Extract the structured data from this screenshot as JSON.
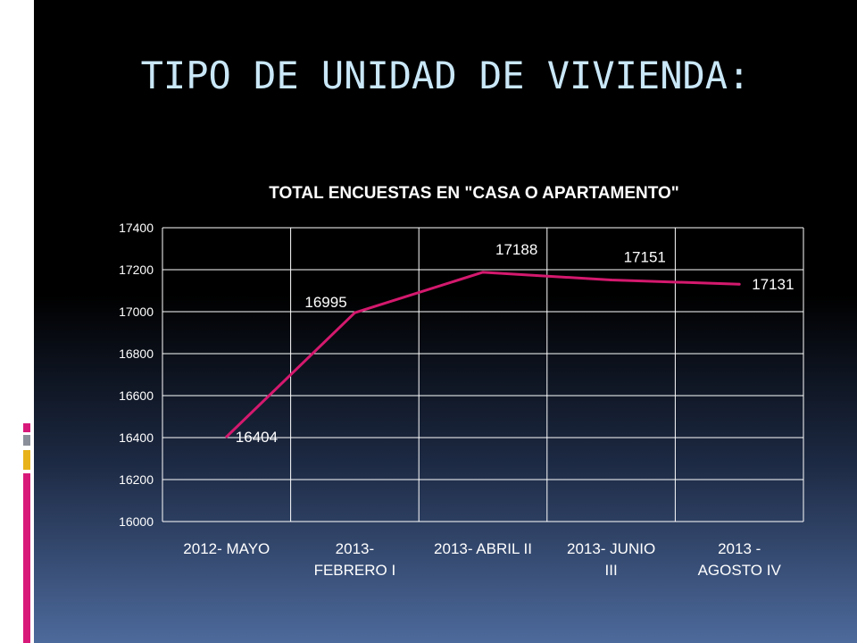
{
  "slide": {
    "title": "TIPO DE UNIDAD DE VIVIENDA:"
  },
  "colors": {
    "background": "#000000",
    "title": "#c9e7f7",
    "line": "#d4196e",
    "axis": "#ffffff",
    "accent_pink": "#d8197a",
    "accent_gray": "#8a8f99",
    "accent_yellow": "#e8b21a"
  },
  "chart_data": {
    "type": "line",
    "title": "TOTAL ENCUESTAS EN \"CASA O APARTAMENTO\"",
    "xlabel": "",
    "ylabel": "",
    "categories": [
      [
        "2012- MAYO"
      ],
      [
        "2013-",
        "FEBRERO I"
      ],
      [
        "2013- ABRIL II"
      ],
      [
        "2013- JUNIO",
        "III"
      ],
      [
        "2013 -",
        "AGOSTO IV"
      ]
    ],
    "series": [
      {
        "values": [
          16404,
          16995,
          17188,
          17151,
          17131
        ]
      }
    ],
    "data_labels": [
      "16404",
      "16995",
      "17188",
      "17151",
      "17131"
    ],
    "ylim": [
      16000,
      17400
    ],
    "y_ticks": [
      16000,
      16200,
      16400,
      16600,
      16800,
      17000,
      17200,
      17400
    ],
    "grid": {
      "horizontal": true,
      "vertical": true
    },
    "legend": "none"
  }
}
